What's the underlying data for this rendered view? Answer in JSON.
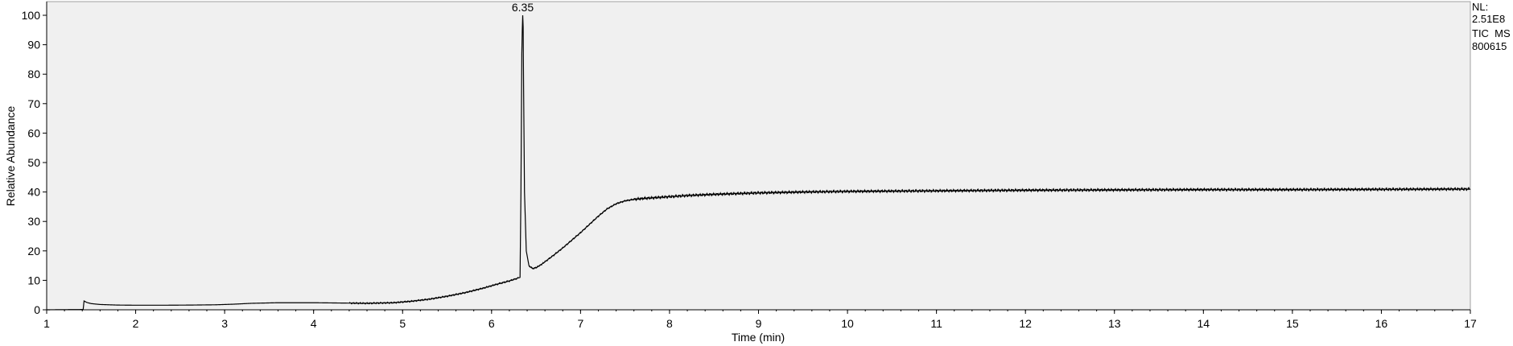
{
  "chart_data": {
    "type": "line",
    "title": "",
    "xlabel": "Time (min)",
    "ylabel": "Relative Abundance",
    "xlim": [
      1,
      17
    ],
    "ylim": [
      0,
      100
    ],
    "xticks": [
      1,
      2,
      3,
      4,
      5,
      6,
      7,
      8,
      9,
      10,
      11,
      12,
      13,
      14,
      15,
      16,
      17
    ],
    "yticks": [
      0,
      10,
      20,
      30,
      40,
      50,
      60,
      70,
      80,
      90,
      100
    ],
    "grid": false,
    "legend": "none",
    "colors": {
      "plot_background": "#f0f0f0",
      "trace": "#000000"
    },
    "peak_labels": [
      {
        "x": 6.35,
        "y": 100,
        "text": "6.35"
      }
    ],
    "info_lines": [
      "NL:",
      "2.51E8",
      "TIC  MS",
      "800615"
    ],
    "series": [
      {
        "x": [
          1.0,
          1.41,
          1.42,
          1.45,
          1.5,
          1.6,
          1.8,
          2.0,
          2.3,
          2.6,
          2.9,
          3.1,
          3.3,
          3.6,
          4.0,
          4.3,
          4.6,
          4.9,
          5.1,
          5.3,
          5.5,
          5.7,
          5.9,
          6.05,
          6.2,
          6.32,
          6.33,
          6.34,
          6.345,
          6.35,
          6.355,
          6.36,
          6.37,
          6.39,
          6.42,
          6.46,
          6.5,
          6.55,
          6.6,
          6.7,
          6.8,
          6.9,
          7.0,
          7.1,
          7.2,
          7.3,
          7.4,
          7.5,
          7.6,
          7.7,
          7.8,
          7.9,
          8.0,
          8.2,
          8.5,
          8.8,
          9.0,
          9.5,
          10.0,
          10.5,
          11.0,
          11.5,
          12.0,
          13.0,
          14.0,
          15.0,
          16.0,
          17.0
        ],
        "values": [
          0.0,
          0.1,
          3.0,
          2.5,
          2.1,
          1.8,
          1.6,
          1.55,
          1.55,
          1.6,
          1.7,
          1.9,
          2.2,
          2.4,
          2.4,
          2.3,
          2.2,
          2.4,
          2.9,
          3.6,
          4.6,
          5.8,
          7.3,
          8.6,
          9.8,
          11.0,
          40.0,
          87.0,
          95.0,
          100.0,
          96.0,
          75.0,
          40.0,
          20.0,
          15.0,
          14.0,
          14.3,
          15.2,
          16.3,
          18.6,
          21.0,
          23.6,
          26.2,
          29.0,
          31.8,
          34.3,
          36.0,
          37.0,
          37.5,
          37.8,
          38.0,
          38.2,
          38.4,
          38.8,
          39.2,
          39.5,
          39.7,
          40.0,
          40.2,
          40.3,
          40.4,
          40.5,
          40.6,
          40.7,
          40.8,
          40.8,
          40.9,
          41.0
        ]
      }
    ]
  }
}
